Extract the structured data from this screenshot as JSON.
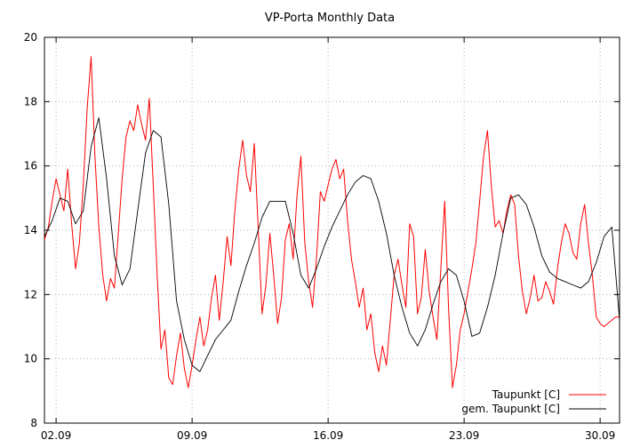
{
  "chart_data": {
    "type": "line",
    "title": "VP-Porta Monthly Data",
    "xlabel": "",
    "ylabel": "",
    "xlim": [
      1.4,
      31.0
    ],
    "ylim": [
      8,
      20
    ],
    "grid": true,
    "legend_position": "bottom-right",
    "x_ticks": [
      {
        "value": 2,
        "label": "02.09"
      },
      {
        "value": 9,
        "label": "09.09"
      },
      {
        "value": 16,
        "label": "16.09"
      },
      {
        "value": 23,
        "label": "23.09"
      },
      {
        "value": 30,
        "label": "30.09"
      }
    ],
    "y_ticks": [
      {
        "value": 8,
        "label": "8"
      },
      {
        "value": 10,
        "label": "10"
      },
      {
        "value": 12,
        "label": "12"
      },
      {
        "value": 14,
        "label": "14"
      },
      {
        "value": 16,
        "label": "16"
      },
      {
        "value": 18,
        "label": "18"
      },
      {
        "value": 20,
        "label": "20"
      }
    ],
    "series": [
      {
        "name": "Taupunkt [C]",
        "color": "#ff0000",
        "x": [
          1.4,
          1.6,
          1.8,
          2.0,
          2.2,
          2.4,
          2.6,
          2.8,
          3.0,
          3.2,
          3.4,
          3.6,
          3.8,
          4.0,
          4.2,
          4.4,
          4.6,
          4.8,
          5.0,
          5.2,
          5.4,
          5.6,
          5.8,
          6.0,
          6.2,
          6.4,
          6.6,
          6.8,
          7.0,
          7.2,
          7.4,
          7.6,
          7.8,
          8.0,
          8.2,
          8.4,
          8.6,
          8.8,
          9.0,
          9.2,
          9.4,
          9.6,
          9.8,
          10.0,
          10.2,
          10.4,
          10.6,
          10.8,
          11.0,
          11.2,
          11.4,
          11.6,
          11.8,
          12.0,
          12.2,
          12.4,
          12.6,
          12.8,
          13.0,
          13.2,
          13.4,
          13.6,
          13.8,
          14.0,
          14.2,
          14.4,
          14.6,
          14.8,
          15.0,
          15.2,
          15.4,
          15.6,
          15.8,
          16.0,
          16.2,
          16.4,
          16.6,
          16.8,
          17.0,
          17.2,
          17.4,
          17.6,
          17.8,
          18.0,
          18.2,
          18.4,
          18.6,
          18.8,
          19.0,
          19.2,
          19.4,
          19.6,
          19.8,
          20.0,
          20.2,
          20.4,
          20.6,
          20.8,
          21.0,
          21.2,
          21.4,
          21.6,
          21.8,
          22.0,
          22.2,
          22.4,
          22.6,
          22.8,
          23.0,
          23.2,
          23.4,
          23.6,
          23.8,
          24.0,
          24.2,
          24.4,
          24.6,
          24.8,
          25.0,
          25.2,
          25.4,
          25.6,
          25.8,
          26.0,
          26.2,
          26.4,
          26.6,
          26.8,
          27.0,
          27.2,
          27.4,
          27.6,
          27.8,
          28.0,
          28.2,
          28.4,
          28.6,
          28.8,
          29.0,
          29.2,
          29.4,
          29.6,
          29.8,
          30.0,
          30.2,
          30.4,
          30.6,
          30.8,
          31.0
        ],
        "values": [
          13.7,
          14.1,
          14.9,
          15.6,
          15.1,
          14.6,
          15.9,
          14.2,
          12.8,
          13.6,
          15.4,
          17.8,
          19.4,
          16.3,
          14.1,
          12.6,
          11.8,
          12.5,
          12.2,
          13.9,
          15.6,
          16.9,
          17.4,
          17.1,
          17.9,
          17.3,
          16.8,
          18.1,
          15.4,
          12.6,
          10.3,
          10.9,
          9.4,
          9.2,
          10.1,
          10.8,
          9.7,
          9.1,
          9.8,
          10.6,
          11.3,
          10.4,
          10.9,
          11.9,
          12.6,
          11.2,
          12.4,
          13.8,
          12.9,
          14.6,
          15.9,
          16.8,
          15.7,
          15.2,
          16.7,
          14.1,
          11.4,
          12.3,
          13.9,
          12.6,
          11.1,
          11.9,
          13.7,
          14.2,
          13.1,
          15.1,
          16.3,
          13.6,
          12.4,
          11.6,
          13.1,
          15.2,
          14.9,
          15.4,
          15.9,
          16.2,
          15.6,
          15.9,
          14.3,
          13.1,
          12.4,
          11.6,
          12.2,
          10.9,
          11.4,
          10.2,
          9.6,
          10.4,
          9.8,
          11.2,
          12.6,
          13.1,
          12.3,
          11.6,
          14.2,
          13.8,
          11.4,
          11.9,
          13.4,
          12.1,
          11.3,
          10.6,
          12.8,
          14.9,
          11.6,
          9.1,
          9.8,
          10.9,
          11.4,
          12.1,
          12.8,
          13.6,
          14.9,
          16.3,
          17.1,
          15.4,
          14.1,
          14.3,
          13.9,
          14.6,
          15.1,
          14.8,
          13.2,
          12.1,
          11.4,
          11.9,
          12.6,
          11.8,
          11.9,
          12.4,
          12.1,
          11.7,
          12.8,
          13.6,
          14.2,
          13.9,
          13.3,
          13.1,
          14.2,
          14.8,
          13.6,
          12.6,
          11.3,
          11.1,
          11.0,
          11.1,
          11.2,
          11.3,
          11.3
        ]
      },
      {
        "name": "gem. Taupunkt [C]",
        "color": "#000000",
        "x": [
          1.4,
          1.8,
          2.2,
          2.6,
          3.0,
          3.4,
          3.8,
          4.2,
          4.6,
          5.0,
          5.4,
          5.8,
          6.2,
          6.6,
          7.0,
          7.4,
          7.8,
          8.2,
          8.6,
          9.0,
          9.4,
          9.8,
          10.2,
          10.6,
          11.0,
          11.4,
          11.8,
          12.2,
          12.6,
          13.0,
          13.4,
          13.8,
          14.2,
          14.6,
          15.0,
          15.4,
          15.8,
          16.2,
          16.6,
          17.0,
          17.4,
          17.8,
          18.2,
          18.6,
          19.0,
          19.4,
          19.8,
          20.2,
          20.6,
          21.0,
          21.4,
          21.8,
          22.2,
          22.6,
          23.0,
          23.4,
          23.8,
          24.2,
          24.6,
          25.0,
          25.4,
          25.8,
          26.2,
          26.6,
          27.0,
          27.4,
          27.8,
          28.2,
          28.6,
          29.0,
          29.4,
          29.8,
          30.2,
          30.6,
          31.0
        ],
        "values": [
          13.8,
          14.3,
          15.0,
          14.9,
          14.2,
          14.6,
          16.6,
          17.5,
          15.6,
          13.2,
          12.3,
          12.8,
          14.6,
          16.4,
          17.1,
          16.9,
          14.8,
          11.8,
          10.6,
          9.8,
          9.6,
          10.1,
          10.6,
          10.9,
          11.2,
          12.1,
          12.9,
          13.6,
          14.4,
          14.9,
          14.9,
          14.9,
          13.9,
          12.6,
          12.2,
          12.8,
          13.5,
          14.1,
          14.6,
          15.1,
          15.5,
          15.7,
          15.6,
          14.9,
          13.9,
          12.6,
          11.6,
          10.8,
          10.4,
          10.9,
          11.7,
          12.4,
          12.8,
          12.6,
          11.8,
          10.7,
          10.8,
          11.6,
          12.6,
          13.9,
          15.0,
          15.1,
          14.8,
          14.1,
          13.2,
          12.7,
          12.5,
          12.4,
          12.3,
          12.2,
          12.4,
          13.0,
          13.8,
          14.1,
          11.2
        ]
      }
    ]
  }
}
